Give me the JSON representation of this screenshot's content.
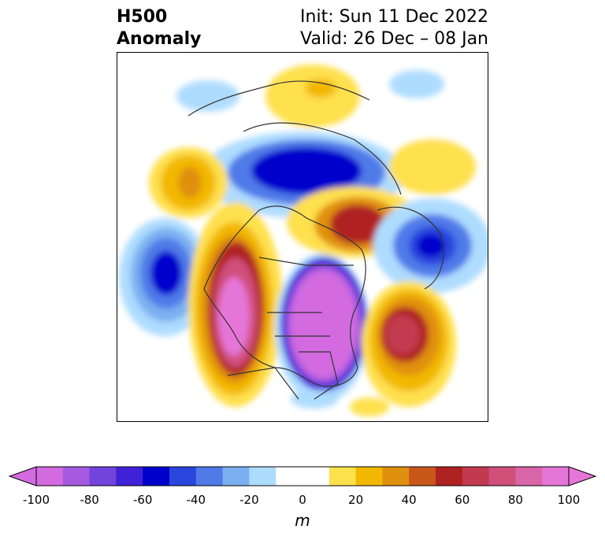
{
  "title": {
    "left_line1": "H500",
    "left_line2": "Anomaly",
    "right_line1": "Init: Sun 11 Dec 2022",
    "right_line2": "Valid: 26 Dec – 08 Jan"
  },
  "colorbar": {
    "unit": "m",
    "ticks": [
      "-100",
      "-80",
      "-60",
      "-40",
      "-20",
      "0",
      "20",
      "40",
      "60",
      "80",
      "100"
    ],
    "colors": [
      "#d36be0",
      "#a55ae0",
      "#7344dd",
      "#3f22d6",
      "#0000cc",
      "#2a46dd",
      "#4f7ae8",
      "#7bb0f0",
      "#aedcff",
      "#ffffff",
      "#ffffff",
      "#ffe04d",
      "#f2b800",
      "#e0900f",
      "#c9571a",
      "#b02222",
      "#c23a4f",
      "#d0507a",
      "#d866a8",
      "#e576d8"
    ],
    "extend_min_color": "#d36be0",
    "extend_max_color": "#e576d8"
  },
  "map": {
    "projection": "polar-stereographic north america",
    "anomaly_centers": [
      {
        "region": "alaska-gulf",
        "sign": "positive",
        "peak_m": 100
      },
      {
        "region": "central-canada-eastern-us",
        "sign": "negative",
        "peak_m": -100
      },
      {
        "region": "north-pacific",
        "sign": "negative",
        "peak_m": -60
      },
      {
        "region": "north-atlantic",
        "sign": "positive",
        "peak_m": 80
      },
      {
        "region": "greenland",
        "sign": "positive",
        "peak_m": 60
      },
      {
        "region": "europe",
        "sign": "negative",
        "peak_m": -60
      },
      {
        "region": "siberia",
        "sign": "negative",
        "peak_m": -60
      }
    ]
  }
}
